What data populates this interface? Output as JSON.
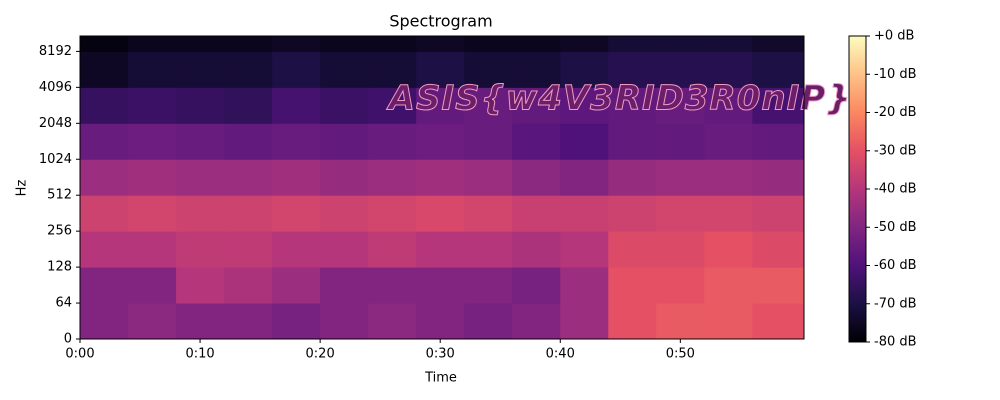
{
  "chart_data": {
    "type": "spectrogram",
    "title": "Spectrogram",
    "xlabel": "Time",
    "ylabel": "Hz",
    "annotation": "ASIS{w4V3RID3R0nIP}",
    "xlim": [
      0,
      60.3
    ],
    "xticks": [
      {
        "value": 0,
        "label": "0:00"
      },
      {
        "value": 10,
        "label": "0:10"
      },
      {
        "value": 20,
        "label": "0:20"
      },
      {
        "value": 30,
        "label": "0:30"
      },
      {
        "value": 40,
        "label": "0:40"
      },
      {
        "value": 50,
        "label": "0:50"
      }
    ],
    "ylim": [
      0,
      11025
    ],
    "yscale": "symlog",
    "linthresh": 64,
    "yticks": [
      0,
      64,
      128,
      256,
      512,
      1024,
      2048,
      4096,
      8192
    ],
    "time_bins": [
      0,
      4,
      8,
      12,
      16,
      20,
      24,
      28,
      32,
      36,
      40,
      44,
      48,
      52,
      56,
      60.3
    ],
    "freq_bins": [
      0,
      64,
      128,
      256,
      512,
      1024,
      2048,
      4096,
      8192,
      11025
    ],
    "z": [
      [
        -50,
        -48,
        -50,
        -50,
        -52,
        -50,
        -48,
        -50,
        -52,
        -50,
        -45,
        -30,
        -28,
        -28,
        -30
      ],
      [
        -50,
        -50,
        -40,
        -42,
        -45,
        -50,
        -50,
        -50,
        -50,
        -52,
        -45,
        -30,
        -30,
        -28,
        -28
      ],
      [
        -40,
        -40,
        -38,
        -38,
        -40,
        -40,
        -38,
        -40,
        -40,
        -42,
        -40,
        -32,
        -32,
        -30,
        -32
      ],
      [
        -35,
        -34,
        -35,
        -35,
        -34,
        -35,
        -34,
        -33,
        -34,
        -36,
        -36,
        -35,
        -34,
        -34,
        -35
      ],
      [
        -45,
        -44,
        -45,
        -45,
        -44,
        -46,
        -45,
        -44,
        -45,
        -48,
        -50,
        -46,
        -45,
        -45,
        -46
      ],
      [
        -55,
        -54,
        -55,
        -56,
        -55,
        -56,
        -55,
        -54,
        -55,
        -58,
        -60,
        -56,
        -56,
        -55,
        -56
      ],
      [
        -65,
        -64,
        -65,
        -66,
        -62,
        -64,
        -63,
        -56,
        -55,
        -56,
        -57,
        -56,
        -55,
        -56,
        -62
      ],
      [
        -75,
        -72,
        -72,
        -72,
        -70,
        -72,
        -72,
        -70,
        -72,
        -72,
        -70,
        -68,
        -68,
        -68,
        -70
      ],
      [
        -78,
        -76,
        -76,
        -76,
        -75,
        -76,
        -76,
        -75,
        -76,
        -76,
        -75,
        -72,
        -72,
        -72,
        -74
      ]
    ],
    "clim": [
      -80,
      0
    ],
    "colormap": [
      "#000004",
      "#1c1044",
      "#4f127b",
      "#812581",
      "#b5367a",
      "#e55064",
      "#fb8761",
      "#fec287",
      "#fcfdbf"
    ],
    "cticks": [
      {
        "value": 0,
        "label": "+0 dB"
      },
      {
        "value": -10,
        "label": "-10 dB"
      },
      {
        "value": -20,
        "label": "-20 dB"
      },
      {
        "value": -30,
        "label": "-30 dB"
      },
      {
        "value": -40,
        "label": "-40 dB"
      },
      {
        "value": -50,
        "label": "-50 dB"
      },
      {
        "value": -60,
        "label": "-60 dB"
      },
      {
        "value": -70,
        "label": "-70 dB"
      },
      {
        "value": -80,
        "label": "-80 dB"
      }
    ]
  }
}
